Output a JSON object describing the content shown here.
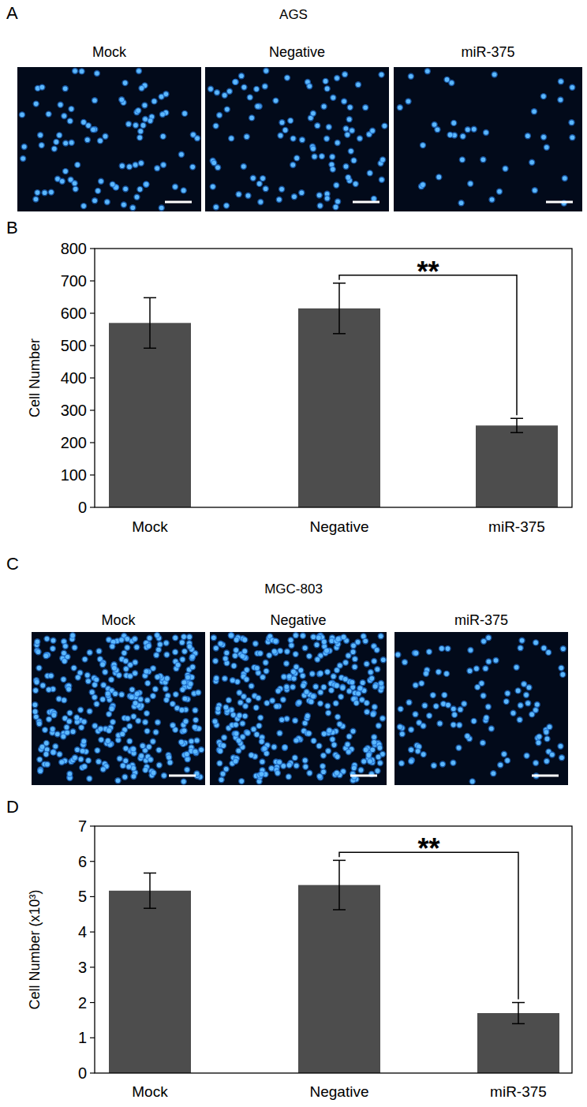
{
  "figure": {
    "image_panels": [
      {
        "label": "A",
        "title": "AGS",
        "conditions": [
          "Mock",
          "Negative",
          "miR-375"
        ]
      },
      {
        "label": "C",
        "title": "MGC-803",
        "conditions": [
          "Mock",
          "Negative",
          "miR-375"
        ]
      }
    ],
    "chart_panel_labels": [
      "B",
      "D"
    ]
  },
  "chart_data": [
    {
      "type": "bar",
      "categories": [
        "Mock",
        "Negative",
        "miR-375"
      ],
      "values": [
        570,
        615,
        253
      ],
      "errors": [
        78,
        78,
        22
      ],
      "color": "#4d4d4d",
      "ylabel": "Cell Number",
      "ylim": [
        0,
        800
      ],
      "yticks": [
        0,
        100,
        200,
        300,
        400,
        500,
        600,
        700,
        800
      ],
      "annotation": {
        "text": "**",
        "categories": [
          "Negative",
          "miR-375"
        ]
      }
    },
    {
      "type": "bar",
      "categories": [
        "Mock",
        "Negative",
        "miR-375"
      ],
      "values": [
        5.17,
        5.33,
        1.7
      ],
      "errors": [
        0.5,
        0.7,
        0.3
      ],
      "color": "#4d4d4d",
      "ylabel": "Cell Number (x10³)",
      "ylim": [
        0,
        7
      ],
      "yticks": [
        0,
        1,
        2,
        3,
        4,
        5,
        6,
        7
      ],
      "annotation": {
        "text": "**",
        "categories": [
          "Negative",
          "miR-375"
        ]
      }
    }
  ]
}
